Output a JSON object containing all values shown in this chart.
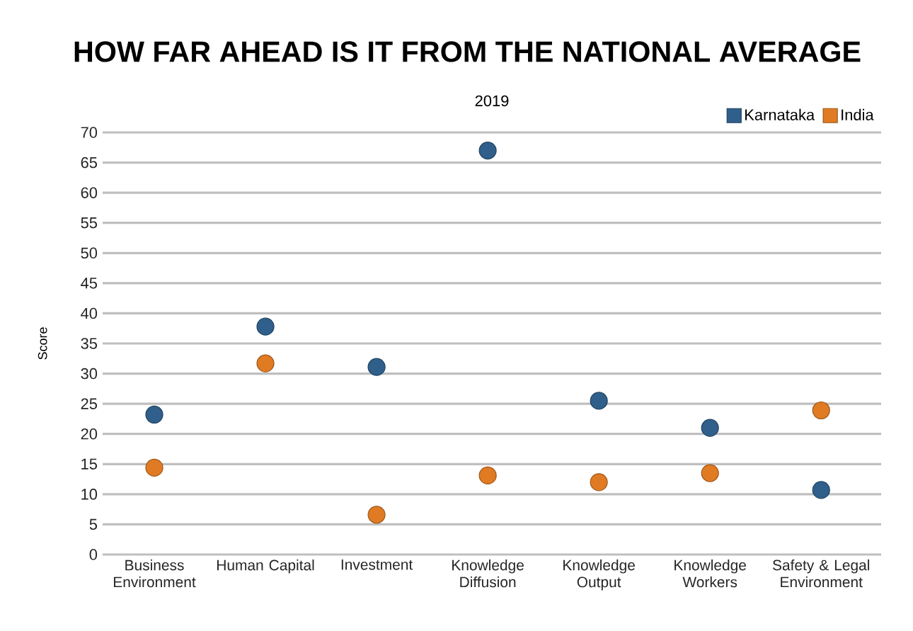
{
  "chart_data": {
    "type": "scatter",
    "title": "HOW FAR AHEAD IS IT FROM THE NATIONAL AVERAGE",
    "subtitle": "2019",
    "ylabel": "Score",
    "categories": [
      "Business Environment",
      "Human Capital",
      "Investment",
      "Knowledge Diffusion",
      "Knowledge Output",
      "Knowledge Workers",
      "Safety & Legal Environment"
    ],
    "series": [
      {
        "name": "Karnataka",
        "color": "#2f5f8a",
        "values": [
          23.2,
          37.8,
          31.1,
          67,
          25.5,
          21,
          10.7
        ]
      },
      {
        "name": "India",
        "color": "#e07b24",
        "values": [
          14.4,
          31.7,
          6.6,
          13.1,
          12,
          13.5,
          23.9
        ]
      }
    ],
    "ylim": [
      0,
      70
    ],
    "yticks": [
      0,
      5,
      10,
      15,
      20,
      25,
      30,
      35,
      40,
      45,
      50,
      55,
      60,
      65,
      70
    ],
    "grid": "y",
    "legend": "top right",
    "marker": "circle"
  }
}
